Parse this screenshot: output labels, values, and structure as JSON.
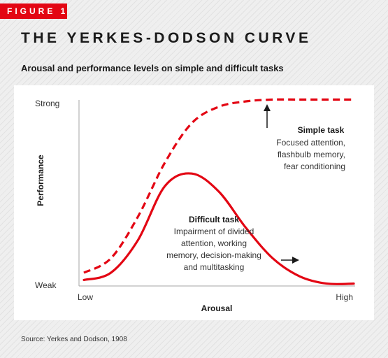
{
  "figure_label": "FIGURE 1",
  "title": "THE YERKES-DODSON CURVE",
  "subtitle": "Arousal and performance levels on simple and difficult tasks",
  "source": "Source: Yerkes and Dodson, 1908",
  "colors": {
    "accent": "#e30613",
    "text": "#1a1a1a"
  },
  "chart_data": {
    "type": "line",
    "xlabel": "Arousal",
    "ylabel": "Performance",
    "x_tick_labels": [
      "Low",
      "High"
    ],
    "y_tick_labels": [
      "Weak",
      "Strong"
    ],
    "xlim": [
      0,
      1
    ],
    "ylim": [
      0,
      1
    ],
    "grid": false,
    "series": [
      {
        "name": "Simple task",
        "style": "dashed",
        "color": "#e30613",
        "x": [
          0.0,
          0.1,
          0.2,
          0.3,
          0.4,
          0.5,
          0.6,
          0.7,
          0.8,
          0.9,
          1.0
        ],
        "y": [
          0.05,
          0.13,
          0.36,
          0.66,
          0.88,
          0.97,
          1.0,
          1.01,
          1.01,
          1.01,
          1.01
        ]
      },
      {
        "name": "Difficult task",
        "style": "solid",
        "color": "#e30613",
        "x": [
          0.0,
          0.1,
          0.2,
          0.3,
          0.4,
          0.5,
          0.6,
          0.7,
          0.8,
          0.9,
          1.0
        ],
        "y": [
          0.01,
          0.05,
          0.23,
          0.53,
          0.6,
          0.5,
          0.3,
          0.13,
          0.03,
          -0.01,
          -0.01
        ]
      }
    ],
    "annotations": [
      {
        "title": "Simple task",
        "lines": [
          "Focused attention,",
          "flashbulb memory,",
          "fear conditioning"
        ],
        "arrow": "up"
      },
      {
        "title": "Difficult task",
        "lines": [
          "Impairment of divided",
          "attention, working",
          "memory, decision-making",
          "and multitasking"
        ],
        "arrow": "right"
      }
    ]
  }
}
